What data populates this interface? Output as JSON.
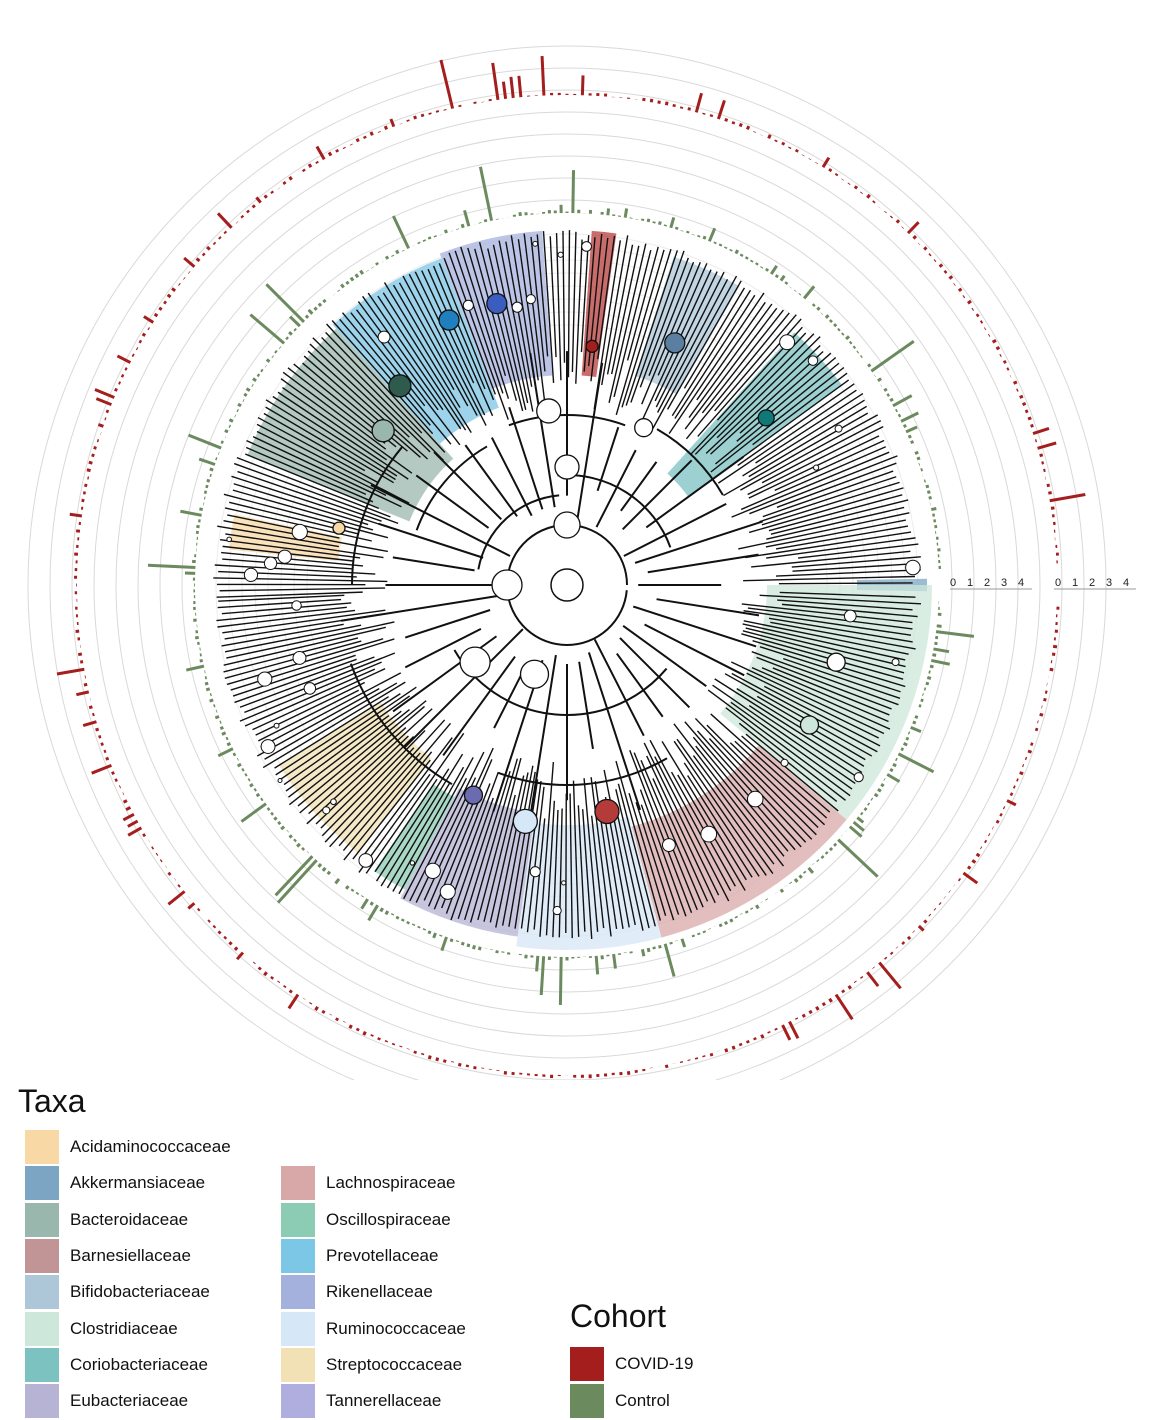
{
  "scales": {
    "inner_ticks": [
      "0",
      "1",
      "2",
      "3",
      "4"
    ],
    "outer_ticks": [
      "0",
      "1",
      "2",
      "3",
      "4"
    ]
  },
  "taxa_legend": {
    "title": "Taxa",
    "items": [
      {
        "label": "Acidaminococcaceae",
        "color": "#f8d9a6"
      },
      {
        "label": "Akkermansiaceae",
        "color": "#7ba5c2"
      },
      {
        "label": "Bacteroidaceae",
        "color": "#9ab7ae"
      },
      {
        "label": "Barnesiellaceae",
        "color": "#c19595"
      },
      {
        "label": "Bifidobacteriaceae",
        "color": "#aec7d8"
      },
      {
        "label": "Clostridiaceae",
        "color": "#cde7da"
      },
      {
        "label": "Coriobacteriaceae",
        "color": "#7cc2c1"
      },
      {
        "label": "Eubacteriaceae",
        "color": "#b6b3d4"
      },
      {
        "label": "Lachnospiraceae",
        "color": "#d8a8a8"
      },
      {
        "label": "Oscillospiraceae",
        "color": "#8ccbb4"
      },
      {
        "label": "Prevotellaceae",
        "color": "#7cc6e6"
      },
      {
        "label": "Rikenellaceae",
        "color": "#a5b1dd"
      },
      {
        "label": "Ruminococcaceae",
        "color": "#d6e7f7"
      },
      {
        "label": "Streptococcaceae",
        "color": "#f2e1b5"
      },
      {
        "label": "Tannerellaceae",
        "color": "#b0addf"
      }
    ]
  },
  "cohort_legend": {
    "title": "Cohort",
    "items": [
      {
        "label": "COVID-19",
        "color": "#a51e1e"
      },
      {
        "label": "Control",
        "color": "#6b8a5e"
      }
    ]
  },
  "colors": {
    "covid_bars": "#a51e1e",
    "control_bars": "#6b8a5e",
    "branches": "#111111",
    "rings": "#d9d9d9"
  }
}
